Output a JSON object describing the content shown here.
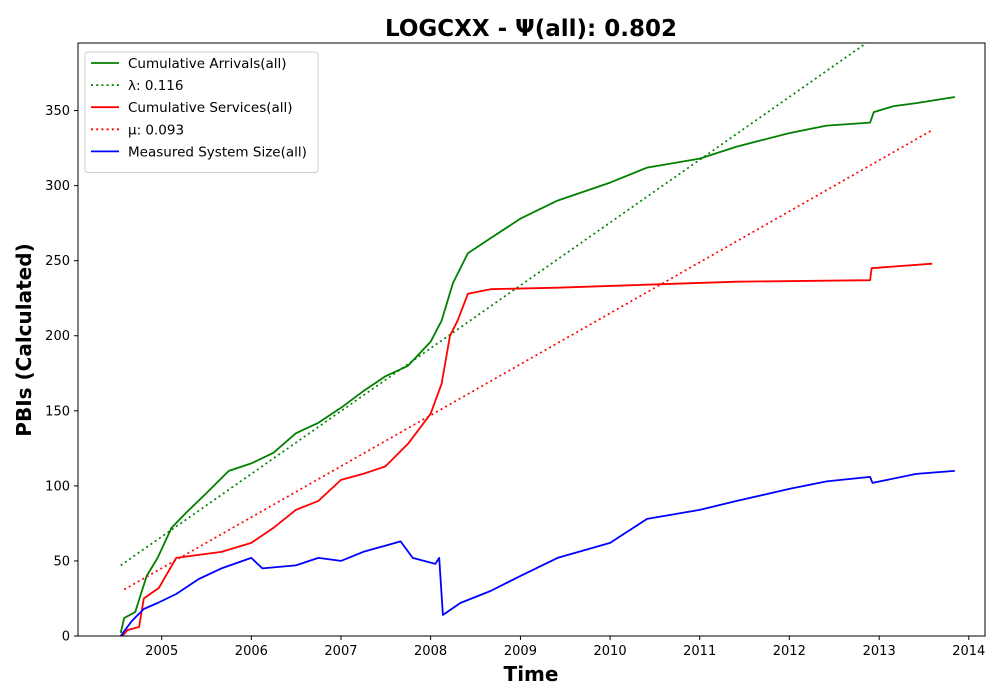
{
  "chart_data": {
    "type": "line",
    "title": "LOGCXX -  Ψ(all): 0.802",
    "xlabel": "Time",
    "ylabel": "PBIs (Calculated)",
    "xlim": [
      "2004-01-26",
      "2014-03-08"
    ],
    "ylim": [
      0,
      395
    ],
    "x_ticks": [
      "2005",
      "2006",
      "2007",
      "2008",
      "2009",
      "2010",
      "2011",
      "2012",
      "2013",
      "2014"
    ],
    "y_ticks": [
      0,
      50,
      100,
      150,
      200,
      250,
      300,
      350
    ],
    "grid": false,
    "legend_position": "top-left",
    "series": [
      {
        "name": "Cumulative Arrivals(all)",
        "color": "#008000",
        "style": "solid",
        "points": [
          [
            "2004-07-18",
            2
          ],
          [
            "2004-08-01",
            12
          ],
          [
            "2004-09-15",
            16
          ],
          [
            "2004-11-01",
            40
          ],
          [
            "2004-12-15",
            52
          ],
          [
            "2005-02-10",
            72
          ],
          [
            "2005-04-10",
            82
          ],
          [
            "2005-07-01",
            95
          ],
          [
            "2005-10-01",
            110
          ],
          [
            "2006-01-01",
            115
          ],
          [
            "2006-04-01",
            122
          ],
          [
            "2006-07-01",
            135
          ],
          [
            "2006-10-01",
            142
          ],
          [
            "2007-01-01",
            152
          ],
          [
            "2007-04-01",
            163
          ],
          [
            "2007-07-01",
            173
          ],
          [
            "2007-10-01",
            180
          ],
          [
            "2008-01-01",
            196
          ],
          [
            "2008-02-15",
            210
          ],
          [
            "2008-04-01",
            235
          ],
          [
            "2008-06-01",
            255
          ],
          [
            "2008-09-01",
            265
          ],
          [
            "2009-01-01",
            278
          ],
          [
            "2009-06-01",
            290
          ],
          [
            "2010-01-01",
            302
          ],
          [
            "2010-06-01",
            312
          ],
          [
            "2011-01-01",
            318
          ],
          [
            "2011-06-01",
            326
          ],
          [
            "2012-01-01",
            335
          ],
          [
            "2012-06-01",
            340
          ],
          [
            "2012-11-25",
            342
          ],
          [
            "2012-12-10",
            349
          ],
          [
            "2013-03-01",
            353
          ],
          [
            "2013-06-01",
            355
          ],
          [
            "2013-11-05",
            359
          ]
        ]
      },
      {
        "name": "λ: 0.116",
        "color": "#008000",
        "style": "dotted",
        "points": [
          [
            "2004-07-18",
            47
          ],
          [
            "2012-11-10",
            395
          ]
        ]
      },
      {
        "name": "Cumulative Services(all)",
        "color": "#ff0000",
        "style": "solid",
        "points": [
          [
            "2004-07-25",
            0
          ],
          [
            "2004-08-15",
            4
          ],
          [
            "2004-10-01",
            6
          ],
          [
            "2004-10-20",
            25
          ],
          [
            "2004-12-20",
            32
          ],
          [
            "2005-03-01",
            52
          ],
          [
            "2005-06-01",
            54
          ],
          [
            "2005-09-01",
            56
          ],
          [
            "2006-01-01",
            62
          ],
          [
            "2006-04-01",
            72
          ],
          [
            "2006-07-01",
            84
          ],
          [
            "2006-10-01",
            90
          ],
          [
            "2007-01-01",
            104
          ],
          [
            "2007-04-01",
            108
          ],
          [
            "2007-07-01",
            113
          ],
          [
            "2007-10-01",
            128
          ],
          [
            "2008-01-01",
            148
          ],
          [
            "2008-02-15",
            168
          ],
          [
            "2008-03-20",
            200
          ],
          [
            "2008-04-20",
            210
          ],
          [
            "2008-06-01",
            228
          ],
          [
            "2008-09-01",
            231
          ],
          [
            "2009-06-01",
            232
          ],
          [
            "2010-06-01",
            234
          ],
          [
            "2011-06-01",
            236
          ],
          [
            "2012-11-25",
            237
          ],
          [
            "2012-12-01",
            245
          ],
          [
            "2013-08-05",
            248
          ]
        ]
      },
      {
        "name": "μ: 0.093",
        "color": "#ff0000",
        "style": "dotted",
        "points": [
          [
            "2004-08-01",
            31
          ],
          [
            "2013-08-05",
            337
          ]
        ]
      },
      {
        "name": "Measured System Size(all)",
        "color": "#0000ff",
        "style": "solid",
        "points": [
          [
            "2004-07-18",
            0
          ],
          [
            "2004-09-01",
            10
          ],
          [
            "2004-10-20",
            18
          ],
          [
            "2004-12-15",
            22
          ],
          [
            "2005-03-01",
            28
          ],
          [
            "2005-06-01",
            38
          ],
          [
            "2005-09-01",
            45
          ],
          [
            "2006-01-01",
            52
          ],
          [
            "2006-02-15",
            45
          ],
          [
            "2006-07-01",
            47
          ],
          [
            "2006-10-01",
            52
          ],
          [
            "2007-01-01",
            50
          ],
          [
            "2007-04-01",
            56
          ],
          [
            "2007-09-01",
            63
          ],
          [
            "2007-10-20",
            52
          ],
          [
            "2008-01-20",
            48
          ],
          [
            "2008-02-05",
            52
          ],
          [
            "2008-02-20",
            14
          ],
          [
            "2008-05-01",
            22
          ],
          [
            "2008-09-01",
            30
          ],
          [
            "2009-01-01",
            40
          ],
          [
            "2009-06-01",
            52
          ],
          [
            "2010-01-01",
            62
          ],
          [
            "2010-06-01",
            78
          ],
          [
            "2011-01-01",
            84
          ],
          [
            "2011-06-01",
            90
          ],
          [
            "2012-01-01",
            98
          ],
          [
            "2012-06-01",
            103
          ],
          [
            "2012-11-25",
            106
          ],
          [
            "2012-12-05",
            102
          ],
          [
            "2013-06-01",
            108
          ],
          [
            "2013-11-05",
            110
          ]
        ]
      }
    ]
  }
}
